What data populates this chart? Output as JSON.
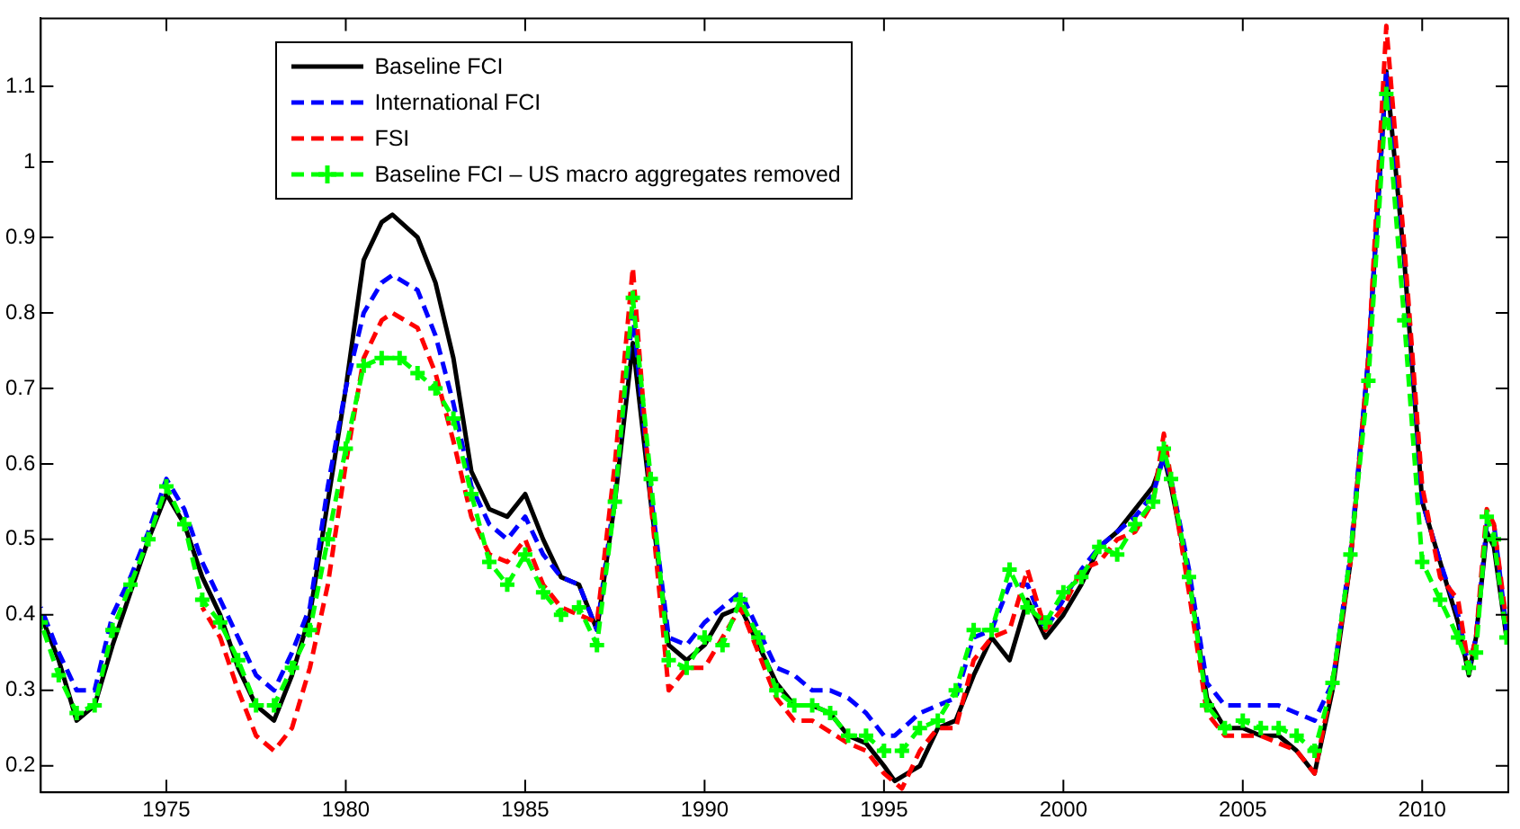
{
  "chart_data": {
    "type": "line",
    "xlim": [
      1971.5,
      2012.4
    ],
    "ylim": [
      0.165,
      1.19
    ],
    "xticks": [
      1975,
      1980,
      1985,
      1990,
      1995,
      2000,
      2005,
      2010
    ],
    "yticks": [
      0.2,
      0.3,
      0.4,
      0.5,
      0.6,
      0.7,
      0.8,
      0.9,
      1,
      1.1
    ],
    "grid": false,
    "legend": "top",
    "marker": "none",
    "series": [
      {
        "name": "Baseline FCI",
        "color": "#000000",
        "line_style": "solid",
        "x": [
          1971.5,
          1972,
          1972.5,
          1973,
          1973.5,
          1974,
          1974.5,
          1975,
          1975.5,
          1976,
          1976.5,
          1977,
          1977.5,
          1978,
          1978.5,
          1979,
          1979.5,
          1980,
          1980.5,
          1981,
          1981.3,
          1982,
          1982.5,
          1983,
          1983.5,
          1984,
          1984.5,
          1985,
          1985.5,
          1986,
          1986.5,
          1987,
          1987.5,
          1988,
          1988.5,
          1989,
          1989.5,
          1990,
          1990.5,
          1991,
          1991.5,
          1992,
          1992.5,
          1993,
          1993.5,
          1994,
          1994.5,
          1995,
          1995.3,
          1996,
          1996.5,
          1997,
          1997.5,
          1998,
          1998.5,
          1999,
          1999.5,
          2000,
          2000.5,
          2001,
          2001.5,
          2002,
          2002.5,
          2002.8,
          2003,
          2003.5,
          2004,
          2004.5,
          2005,
          2005.5,
          2006,
          2006.5,
          2007,
          2007.5,
          2008,
          2008.5,
          2009,
          2009.5,
          2010,
          2010.5,
          2011,
          2011.3,
          2011.5,
          2011.8,
          2012,
          2012.35
        ],
        "values": [
          0.4,
          0.34,
          0.26,
          0.28,
          0.36,
          0.43,
          0.5,
          0.56,
          0.52,
          0.45,
          0.4,
          0.33,
          0.28,
          0.26,
          0.32,
          0.4,
          0.55,
          0.7,
          0.87,
          0.92,
          0.93,
          0.9,
          0.84,
          0.74,
          0.59,
          0.54,
          0.53,
          0.56,
          0.5,
          0.45,
          0.44,
          0.38,
          0.55,
          0.76,
          0.55,
          0.36,
          0.34,
          0.36,
          0.4,
          0.41,
          0.36,
          0.31,
          0.28,
          0.28,
          0.27,
          0.24,
          0.23,
          0.2,
          0.18,
          0.2,
          0.25,
          0.26,
          0.32,
          0.37,
          0.34,
          0.42,
          0.37,
          0.4,
          0.44,
          0.49,
          0.51,
          0.54,
          0.57,
          0.61,
          0.57,
          0.45,
          0.29,
          0.25,
          0.25,
          0.24,
          0.24,
          0.22,
          0.19,
          0.3,
          0.47,
          0.74,
          1.12,
          0.87,
          0.55,
          0.47,
          0.39,
          0.32,
          0.37,
          0.51,
          0.49,
          0.37
        ]
      },
      {
        "name": "International FCI",
        "color": "#0000ff",
        "line_style": "dashed",
        "x": [
          1971.5,
          1972,
          1972.5,
          1973,
          1973.5,
          1974,
          1974.5,
          1975,
          1975.5,
          1976,
          1976.5,
          1977,
          1977.5,
          1978,
          1978.5,
          1979,
          1979.5,
          1980,
          1980.5,
          1981,
          1981.3,
          1982,
          1982.5,
          1983,
          1983.5,
          1984,
          1984.5,
          1985,
          1985.5,
          1986,
          1986.5,
          1987,
          1987.5,
          1988,
          1988.5,
          1989,
          1989.5,
          1990,
          1990.5,
          1991,
          1991.5,
          1992,
          1992.5,
          1993,
          1993.5,
          1994,
          1994.5,
          1995,
          1995.3,
          1996,
          1996.5,
          1997,
          1997.5,
          1998,
          1998.5,
          1999,
          1999.5,
          2000,
          2000.5,
          2001,
          2001.5,
          2002,
          2002.5,
          2002.8,
          2003,
          2003.5,
          2004,
          2004.5,
          2005,
          2005.5,
          2006,
          2006.5,
          2007,
          2007.5,
          2008,
          2008.5,
          2009,
          2009.5,
          2010,
          2010.5,
          2011,
          2011.3,
          2011.5,
          2011.8,
          2012,
          2012.35
        ],
        "values": [
          0.41,
          0.35,
          0.3,
          0.3,
          0.4,
          0.45,
          0.51,
          0.58,
          0.54,
          0.47,
          0.42,
          0.37,
          0.32,
          0.3,
          0.35,
          0.41,
          0.57,
          0.7,
          0.8,
          0.84,
          0.85,
          0.83,
          0.77,
          0.68,
          0.57,
          0.52,
          0.5,
          0.53,
          0.48,
          0.45,
          0.44,
          0.38,
          0.56,
          0.8,
          0.56,
          0.37,
          0.36,
          0.39,
          0.41,
          0.43,
          0.38,
          0.33,
          0.32,
          0.3,
          0.3,
          0.29,
          0.27,
          0.24,
          0.24,
          0.27,
          0.28,
          0.29,
          0.37,
          0.38,
          0.44,
          0.44,
          0.38,
          0.42,
          0.46,
          0.49,
          0.51,
          0.53,
          0.56,
          0.61,
          0.58,
          0.46,
          0.31,
          0.28,
          0.28,
          0.28,
          0.28,
          0.27,
          0.26,
          0.31,
          0.48,
          0.74,
          1.12,
          0.88,
          0.55,
          0.47,
          0.4,
          0.33,
          0.37,
          0.52,
          0.52,
          0.38
        ]
      },
      {
        "name": "FSI",
        "color": "#ff0000",
        "line_style": "dashed",
        "x": [
          1976,
          1976.5,
          1977,
          1977.5,
          1978,
          1978.5,
          1979,
          1979.5,
          1980,
          1980.5,
          1981,
          1981.3,
          1982,
          1982.5,
          1983,
          1983.5,
          1984,
          1984.5,
          1985,
          1985.5,
          1986,
          1987,
          1987.5,
          1988,
          1988.5,
          1989,
          1989.5,
          1990,
          1990.5,
          1991,
          1991.5,
          1992,
          1992.5,
          1993,
          1994,
          1994.5,
          1995,
          1995.5,
          1996,
          1996.5,
          1997,
          1997.5,
          1998,
          1998.5,
          1999,
          1999.5,
          2000,
          2000.5,
          2001,
          2001.5,
          2002,
          2002.5,
          2002.8,
          2003,
          2003.5,
          2004,
          2004.5,
          2005,
          2005.5,
          2006,
          2006.5,
          2007,
          2007.5,
          2008,
          2008.5,
          2009,
          2009.5,
          2010,
          2010.5,
          2011,
          2011.3,
          2011.5,
          2011.8,
          2012,
          2012.35
        ],
        "values": [
          0.41,
          0.37,
          0.3,
          0.24,
          0.22,
          0.25,
          0.33,
          0.44,
          0.6,
          0.74,
          0.79,
          0.8,
          0.78,
          0.72,
          0.63,
          0.53,
          0.48,
          0.47,
          0.5,
          0.44,
          0.41,
          0.39,
          0.6,
          0.86,
          0.55,
          0.3,
          0.33,
          0.33,
          0.37,
          0.41,
          0.35,
          0.29,
          0.26,
          0.26,
          0.23,
          0.22,
          0.19,
          0.17,
          0.22,
          0.25,
          0.25,
          0.34,
          0.37,
          0.38,
          0.46,
          0.38,
          0.41,
          0.46,
          0.47,
          0.5,
          0.51,
          0.55,
          0.64,
          0.58,
          0.43,
          0.27,
          0.24,
          0.24,
          0.24,
          0.23,
          0.22,
          0.19,
          0.31,
          0.47,
          0.74,
          1.18,
          0.89,
          0.57,
          0.45,
          0.42,
          0.33,
          0.37,
          0.54,
          0.52,
          0.39
        ]
      },
      {
        "name": "Baseline FCI – US macro aggregates removed",
        "color": "#00ff00",
        "line_style": "dashed",
        "marker": "cross",
        "x": [
          1971.5,
          1972,
          1972.5,
          1973,
          1973.5,
          1974,
          1974.5,
          1975,
          1975.5,
          1976,
          1976.5,
          1977,
          1977.5,
          1978,
          1978.5,
          1979,
          1979.5,
          1980,
          1980.5,
          1981,
          1981.5,
          1982,
          1982.5,
          1983,
          1983.5,
          1984,
          1984.5,
          1985,
          1985.5,
          1986,
          1986.5,
          1987,
          1987.5,
          1988,
          1988.5,
          1989,
          1989.5,
          1990,
          1990.5,
          1991,
          1991.5,
          1992,
          1992.5,
          1993,
          1993.5,
          1994,
          1994.5,
          1995,
          1995.5,
          1996,
          1996.5,
          1997,
          1997.5,
          1998,
          1998.5,
          1999,
          1999.5,
          2000,
          2000.5,
          2001,
          2001.5,
          2002,
          2002.5,
          2002.8,
          2003,
          2003.5,
          2004,
          2004.5,
          2005,
          2005.5,
          2006,
          2006.5,
          2007,
          2007.5,
          2008,
          2008.5,
          2009,
          2009.5,
          2010,
          2010.5,
          2011,
          2011.3,
          2011.5,
          2011.8,
          2012,
          2012.35
        ],
        "values": [
          0.39,
          0.32,
          0.27,
          0.28,
          0.38,
          0.44,
          0.5,
          0.57,
          0.52,
          0.42,
          0.39,
          0.34,
          0.28,
          0.28,
          0.33,
          0.38,
          0.5,
          0.62,
          0.73,
          0.74,
          0.74,
          0.72,
          0.7,
          0.66,
          0.56,
          0.47,
          0.44,
          0.48,
          0.43,
          0.4,
          0.41,
          0.36,
          0.55,
          0.82,
          0.58,
          0.34,
          0.33,
          0.37,
          0.36,
          0.42,
          0.37,
          0.3,
          0.28,
          0.28,
          0.27,
          0.24,
          0.24,
          0.22,
          0.22,
          0.25,
          0.26,
          0.3,
          0.38,
          0.38,
          0.46,
          0.41,
          0.39,
          0.43,
          0.45,
          0.49,
          0.48,
          0.52,
          0.55,
          0.62,
          0.58,
          0.45,
          0.28,
          0.25,
          0.26,
          0.25,
          0.25,
          0.24,
          0.22,
          0.31,
          0.48,
          0.71,
          1.09,
          0.79,
          0.47,
          0.42,
          0.37,
          0.33,
          0.35,
          0.53,
          0.5,
          0.37
        ]
      }
    ]
  }
}
